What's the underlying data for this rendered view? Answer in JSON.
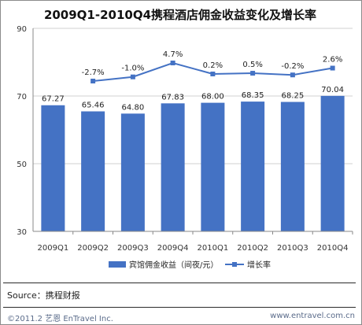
{
  "title": "2009Q1-2010Q4携程酒店佣金收益变化及增长率",
  "source": "Source：携程财报",
  "copyright": "©2011.2 艺恩 EnTravel Inc.",
  "website": "www.entravel.com.cn",
  "chart_data": {
    "type": "bar",
    "categories": [
      "2009Q1",
      "2009Q2",
      "2009Q3",
      "2009Q4",
      "2010Q1",
      "2010Q2",
      "2010Q3",
      "2010Q4"
    ],
    "y_ticks": [
      "90",
      "70",
      "50",
      "30"
    ],
    "ylim": [
      30,
      90
    ],
    "grid": true,
    "legend_position": "bottom",
    "colors": {
      "bar": "#4472c4",
      "line": "#4472c4",
      "grid": "#d0d0d0"
    },
    "series": [
      {
        "name": "宾馆佣金收益（间夜/元）",
        "type": "bar",
        "values": [
          67.27,
          65.46,
          64.8,
          67.83,
          68.0,
          68.35,
          68.25,
          70.04
        ],
        "labels": [
          "67.27",
          "65.46",
          "64.80",
          "67.83",
          "68.00",
          "68.35",
          "68.25",
          "70.04"
        ]
      },
      {
        "name": "增长率",
        "type": "line",
        "values": [
          null,
          -2.7,
          -1.0,
          4.7,
          0.2,
          0.5,
          -0.2,
          2.6
        ],
        "labels": [
          "",
          "-2.7%",
          "-1.0%",
          "4.7%",
          "0.2%",
          "0.5%",
          "-0.2%",
          "2.6%"
        ]
      }
    ]
  }
}
